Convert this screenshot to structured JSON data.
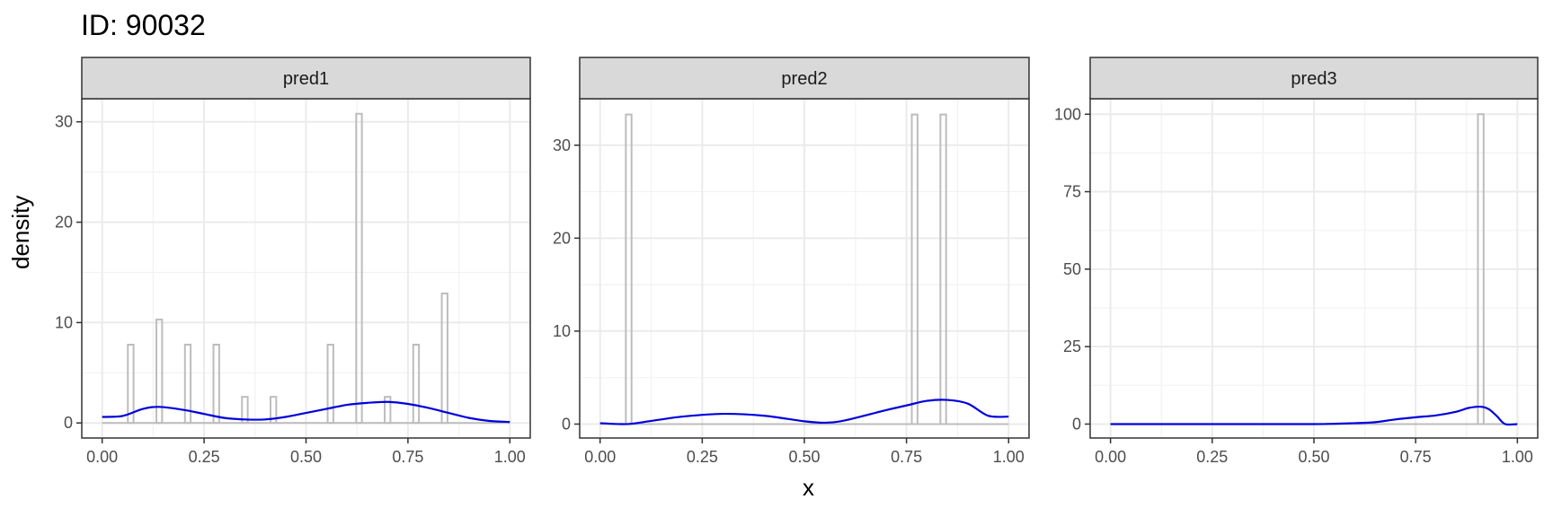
{
  "chart_data": {
    "type": "histogram-density-facets",
    "title": "ID: 90032",
    "xlabel": "x",
    "ylabel": "density",
    "colors": {
      "histogram_outline": "#bdbdbd",
      "density_line": "#0000dd",
      "strip_fill": "#d9d9d9"
    },
    "x_ticks": [
      "0.00",
      "0.25",
      "0.50",
      "0.75",
      "1.00"
    ],
    "facets": [
      {
        "name": "pred1",
        "xlim": [
          -0.05,
          1.05
        ],
        "ylim": [
          -1.5,
          32.3
        ],
        "y_ticks": [
          0,
          10,
          20,
          30
        ],
        "histogram": [
          {
            "x": 0.07,
            "y": 7.8
          },
          {
            "x": 0.14,
            "y": 10.3
          },
          {
            "x": 0.21,
            "y": 7.8
          },
          {
            "x": 0.28,
            "y": 7.8
          },
          {
            "x": 0.35,
            "y": 2.6
          },
          {
            "x": 0.42,
            "y": 2.6
          },
          {
            "x": 0.56,
            "y": 7.8
          },
          {
            "x": 0.63,
            "y": 30.8
          },
          {
            "x": 0.7,
            "y": 2.6
          },
          {
            "x": 0.77,
            "y": 7.8
          },
          {
            "x": 0.84,
            "y": 12.9
          }
        ],
        "density": {
          "x": [
            0,
            0.05,
            0.1,
            0.14,
            0.2,
            0.25,
            0.3,
            0.35,
            0.4,
            0.45,
            0.5,
            0.55,
            0.6,
            0.65,
            0.7,
            0.75,
            0.8,
            0.85,
            0.9,
            0.95,
            1.0
          ],
          "y": [
            0.6,
            0.7,
            1.4,
            1.6,
            1.3,
            0.9,
            0.5,
            0.35,
            0.35,
            0.6,
            1.0,
            1.4,
            1.8,
            2.0,
            2.1,
            1.9,
            1.5,
            1.0,
            0.5,
            0.2,
            0.1
          ]
        }
      },
      {
        "name": "pred2",
        "xlim": [
          -0.05,
          1.05
        ],
        "ylim": [
          -1.5,
          35.0
        ],
        "y_ticks": [
          0,
          10,
          20,
          30
        ],
        "histogram": [
          {
            "x": 0.07,
            "y": 33.3
          },
          {
            "x": 0.77,
            "y": 33.3
          },
          {
            "x": 0.84,
            "y": 33.3
          }
        ],
        "density": {
          "x": [
            0,
            0.05,
            0.08,
            0.15,
            0.2,
            0.3,
            0.4,
            0.5,
            0.55,
            0.6,
            0.7,
            0.75,
            0.8,
            0.85,
            0.9,
            0.95,
            1.0
          ],
          "y": [
            0.1,
            0.0,
            0.05,
            0.5,
            0.8,
            1.1,
            0.9,
            0.3,
            0.15,
            0.4,
            1.5,
            2.0,
            2.5,
            2.6,
            2.2,
            0.9,
            0.8
          ]
        }
      },
      {
        "name": "pred3",
        "xlim": [
          -0.05,
          1.05
        ],
        "ylim": [
          -4.5,
          105.0
        ],
        "y_ticks": [
          0,
          25,
          50,
          75,
          100
        ],
        "histogram": [
          {
            "x": 0.91,
            "y": 100
          }
        ],
        "density": {
          "x": [
            0,
            0.1,
            0.2,
            0.3,
            0.4,
            0.5,
            0.55,
            0.6,
            0.65,
            0.7,
            0.75,
            0.8,
            0.85,
            0.88,
            0.91,
            0.93,
            0.95,
            0.97,
            1.0
          ],
          "y": [
            0,
            0,
            0,
            0,
            0,
            0,
            0.1,
            0.3,
            0.6,
            1.5,
            2.2,
            2.8,
            4.0,
            5.2,
            5.6,
            4.8,
            2.5,
            0.0,
            0.0
          ]
        }
      }
    ]
  }
}
